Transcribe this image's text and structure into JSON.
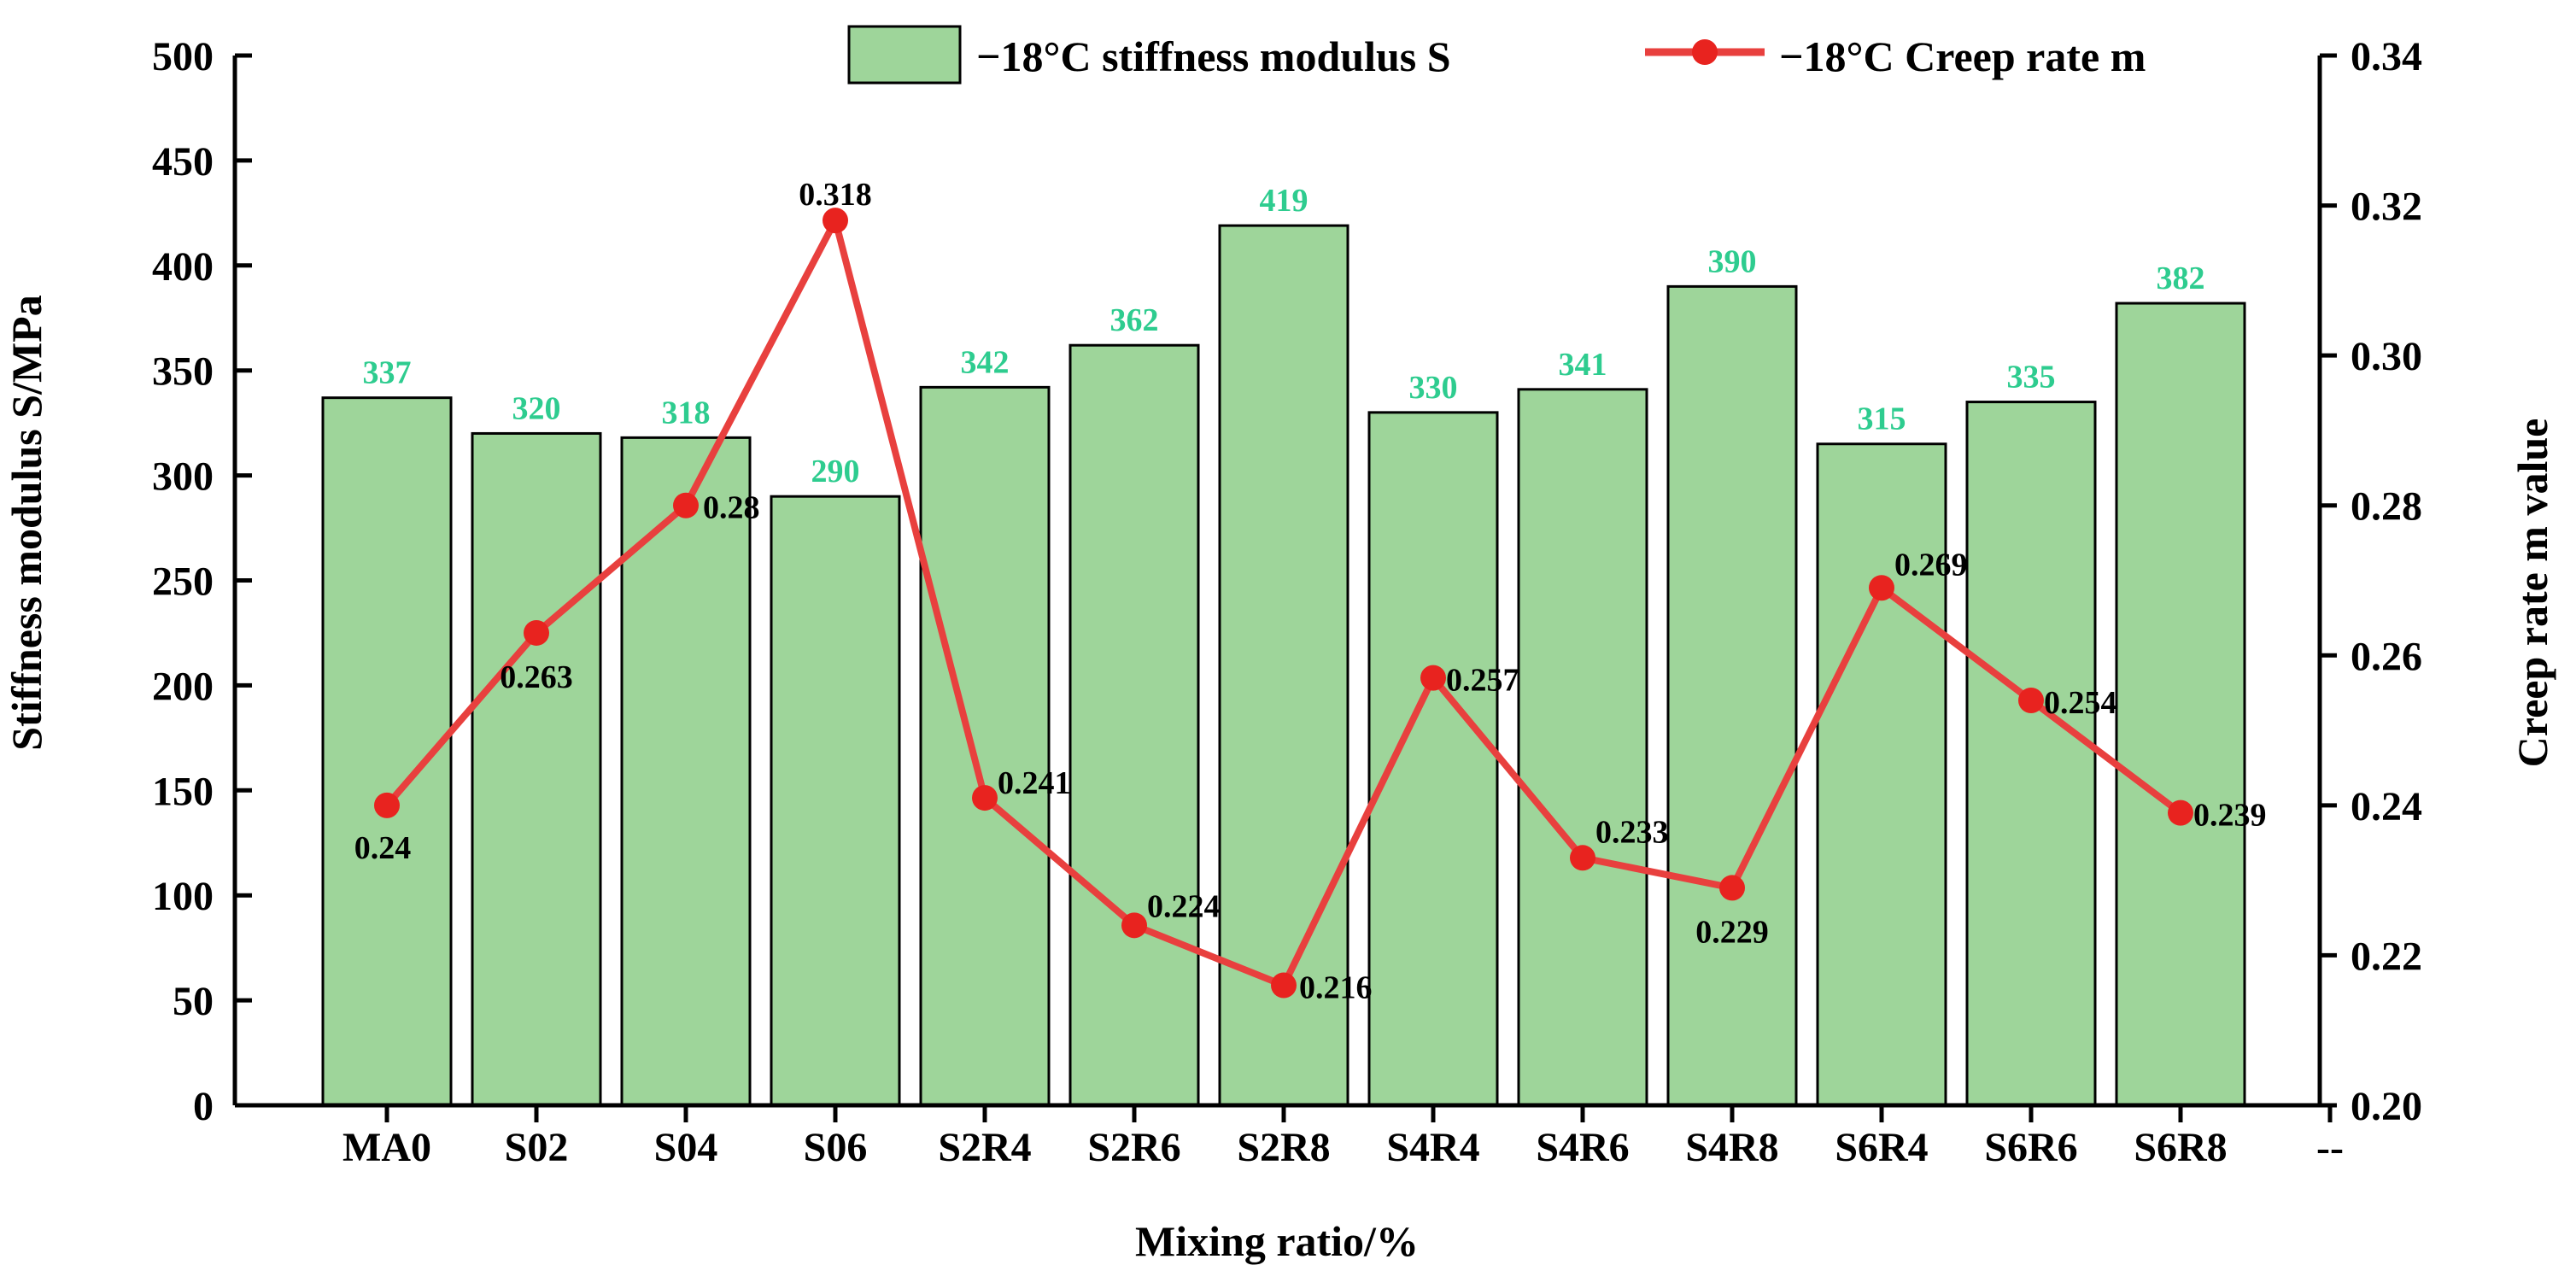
{
  "chart_data": {
    "type": "bar+line",
    "categories": [
      "MA0",
      "S02",
      "S04",
      "S06",
      "S2R4",
      "S2R6",
      "S2R8",
      "S4R4",
      "S4R6",
      "S4R8",
      "S6R4",
      "S6R6",
      "S6R8"
    ],
    "extra_tick_label": "--",
    "series": [
      {
        "name": "−18°C stiffness modulus S",
        "type": "bar",
        "axis": "left",
        "values": [
          337,
          320,
          318,
          290,
          342,
          362,
          419,
          330,
          341,
          390,
          315,
          335,
          382
        ],
        "labels": [
          "337",
          "320",
          "318",
          "290",
          "342",
          "362",
          "419",
          "330",
          "341",
          "390",
          "315",
          "335",
          "382"
        ],
        "color": "#9ed59a"
      },
      {
        "name": "−18°C Creep rate m",
        "type": "line",
        "axis": "right",
        "values": [
          0.24,
          0.263,
          0.28,
          0.318,
          0.241,
          0.224,
          0.216,
          0.257,
          0.233,
          0.229,
          0.269,
          0.254,
          0.239
        ],
        "labels": [
          "0.24",
          "0.263",
          "0.28",
          "0.318",
          "0.241",
          "0.224",
          "0.216",
          "0.257",
          "0.233",
          "0.229",
          "0.269",
          "0.254",
          "0.239"
        ],
        "color": "#e8403e"
      }
    ],
    "xlabel": "Mixing ratio/%",
    "ylabel": "Stiffness modulus S/MPa",
    "ylabel_right": "Creep rate m value",
    "ylim": [
      0,
      500
    ],
    "ylim_right": [
      0.2,
      0.34
    ],
    "yticks": [
      "0",
      "50",
      "100",
      "150",
      "200",
      "250",
      "300",
      "350",
      "400",
      "450",
      "500"
    ],
    "yticks_right": [
      "0.20",
      "0.22",
      "0.24",
      "0.26",
      "0.28",
      "0.30",
      "0.32",
      "0.34"
    ],
    "legend_position": "top-right",
    "grid": false
  },
  "colors": {
    "bar_fill": "#9ed59a",
    "bar_stroke": "#000000",
    "line": "#e8403e",
    "marker": "#e8231f",
    "bar_label": "#2ecc8f"
  }
}
